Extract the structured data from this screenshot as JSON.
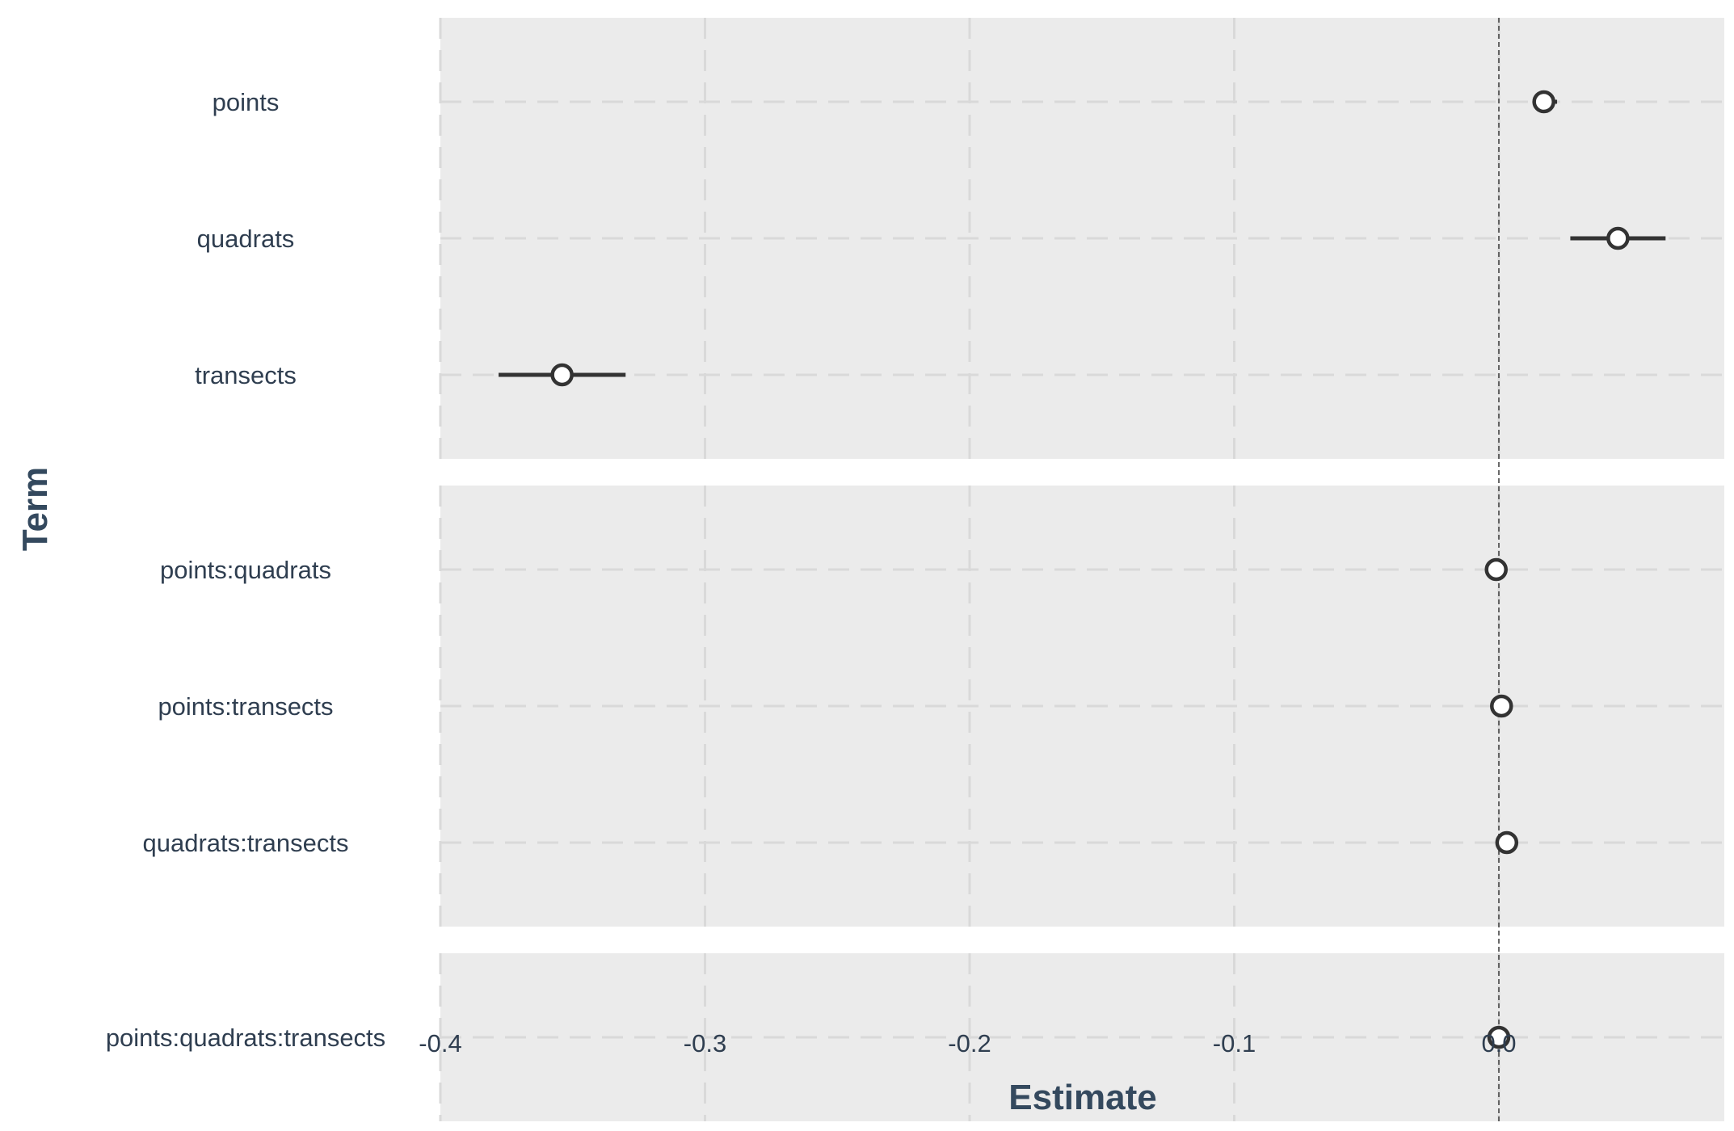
{
  "chart_data": {
    "type": "dot-whisker",
    "xlabel": "Estimate",
    "ylabel": "Term",
    "xlim": [
      -0.4,
      0.085
    ],
    "x_ticks": [
      -0.4,
      -0.3,
      -0.2,
      -0.1,
      0.0
    ],
    "x_tick_labels": [
      "-0.4",
      "-0.3",
      "-0.2",
      "-0.1",
      "0.0"
    ],
    "reference_line_x": 0,
    "grid": true,
    "panels": [
      {
        "terms": [
          {
            "term": "points",
            "estimate": 0.017,
            "low": 0.013,
            "high": 0.022
          },
          {
            "term": "quadrats",
            "estimate": 0.045,
            "low": 0.027,
            "high": 0.063
          },
          {
            "term": "transects",
            "estimate": -0.354,
            "low": -0.378,
            "high": -0.33
          }
        ]
      },
      {
        "terms": [
          {
            "term": "points:quadrats",
            "estimate": -0.001,
            "low": -0.001,
            "high": -0.001
          },
          {
            "term": "points:transects",
            "estimate": 0.001,
            "low": 0.001,
            "high": 0.001
          },
          {
            "term": "quadrats:transects",
            "estimate": 0.003,
            "low": 0.003,
            "high": 0.003
          }
        ]
      },
      {
        "terms": [
          {
            "term": "points:quadrats:transects",
            "estimate": 0.0,
            "low": 0.0,
            "high": 0.0
          }
        ]
      }
    ],
    "colors": {
      "panel_bg": "#ebebeb",
      "grid": "#d9d9d9",
      "marker": "#333333",
      "text": "#2f3e50",
      "title": "#34495e"
    }
  }
}
